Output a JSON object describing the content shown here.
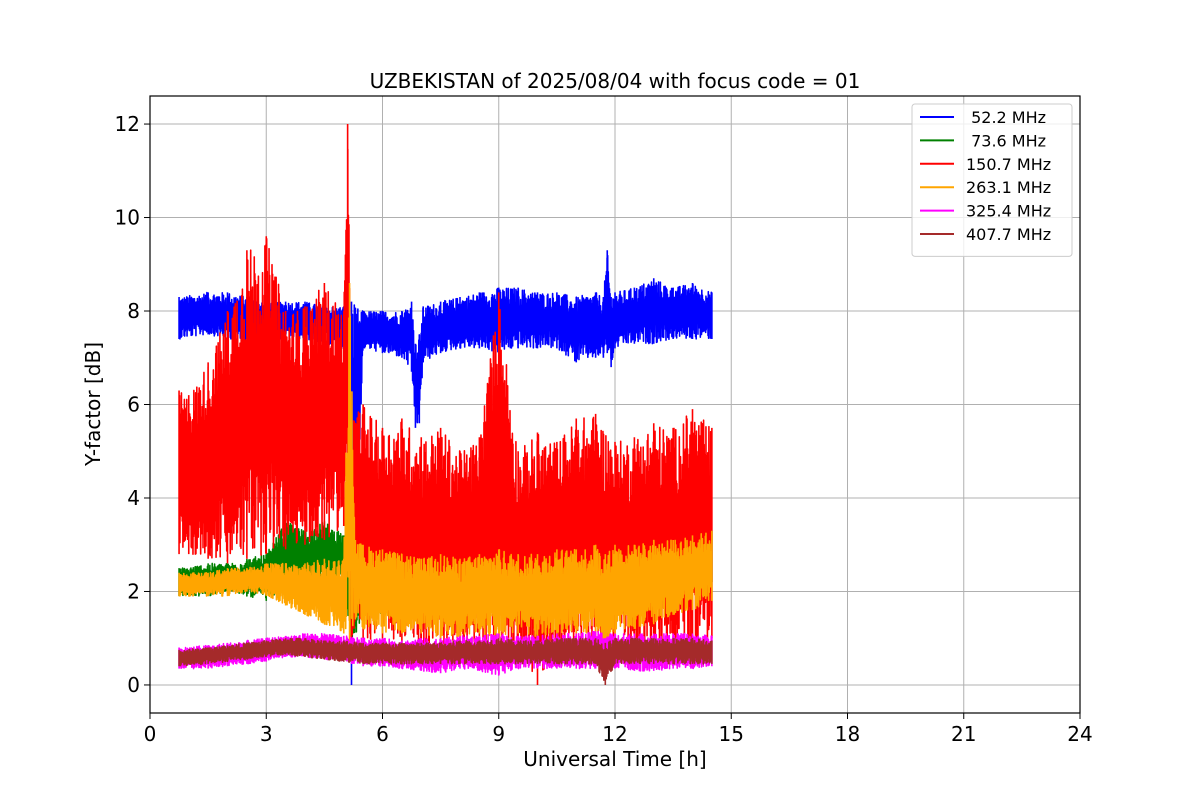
{
  "chart_data": {
    "type": "line",
    "title": "UZBEKISTAN of 2025/08/04 with focus code = 01",
    "xlabel": "Universal Time [h]",
    "ylabel": "Y-factor [dB]",
    "xlim": [
      0,
      24
    ],
    "ylim": [
      -0.6,
      12.6
    ],
    "xticks": [
      "0",
      "3",
      "6",
      "9",
      "12",
      "15",
      "18",
      "21",
      "24"
    ],
    "yticks": [
      "0",
      "2",
      "4",
      "6",
      "8",
      "10",
      "12"
    ],
    "grid": true,
    "legend_position": "top-right",
    "series": [
      {
        "name": " 52.2 MHz",
        "color": "#0000ff",
        "x": [
          0.75,
          1.5,
          2.0,
          2.5,
          3.0,
          3.5,
          4.0,
          4.5,
          5.0,
          5.1,
          5.2,
          5.5,
          6.0,
          6.5,
          6.75,
          6.85,
          6.95,
          7.05,
          7.5,
          8.0,
          8.5,
          9.0,
          9.5,
          10.0,
          10.5,
          11.0,
          11.5,
          11.7,
          11.8,
          11.9,
          12.0,
          12.5,
          13.0,
          13.5,
          14.0,
          14.5
        ],
        "lower": [
          7.4,
          7.5,
          7.4,
          7.4,
          7.4,
          7.4,
          7.4,
          7.3,
          7.2,
          7.3,
          0.0,
          7.2,
          7.1,
          7.0,
          6.7,
          5.5,
          5.6,
          6.9,
          7.1,
          7.2,
          7.2,
          7.1,
          7.2,
          7.2,
          7.2,
          6.9,
          7.0,
          7.0,
          7.1,
          6.8,
          7.2,
          7.3,
          7.3,
          7.4,
          7.4,
          7.4
        ],
        "upper": [
          8.3,
          8.4,
          8.4,
          8.3,
          8.2,
          8.2,
          8.2,
          8.1,
          8.1,
          8.2,
          8.2,
          8.0,
          8.0,
          8.0,
          8.2,
          7.3,
          7.5,
          8.1,
          8.2,
          8.3,
          8.4,
          8.5,
          8.5,
          8.4,
          8.4,
          8.3,
          8.4,
          8.3,
          9.3,
          8.3,
          8.4,
          8.5,
          8.7,
          8.5,
          8.6,
          8.4
        ]
      },
      {
        "name": " 73.6 MHz",
        "color": "#008000",
        "x": [
          0.75,
          1.5,
          2.0,
          2.5,
          3.0,
          3.5,
          4.0,
          4.5,
          5.0,
          5.2,
          5.5,
          6.0,
          6.5,
          7.0,
          7.5,
          8.0,
          8.5,
          9.0,
          9.5,
          10.0,
          10.5,
          11.0,
          11.5,
          12.0,
          12.5,
          13.0,
          13.5,
          14.0,
          14.5
        ],
        "lower": [
          1.9,
          1.9,
          2.0,
          1.9,
          1.8,
          2.1,
          2.2,
          2.2,
          2.3,
          0.6,
          1.6,
          1.5,
          1.5,
          1.6,
          1.6,
          1.7,
          1.7,
          1.7,
          1.7,
          1.7,
          1.8,
          1.8,
          1.8,
          1.9,
          1.9,
          2.0,
          2.1,
          2.1,
          2.2
        ],
        "upper": [
          2.5,
          2.6,
          2.6,
          2.7,
          2.8,
          3.5,
          3.3,
          3.5,
          3.2,
          3.0,
          3.1,
          4.3,
          4.2,
          4.0,
          3.5,
          4.2,
          3.8,
          4.6,
          3.4,
          3.2,
          3.4,
          3.5,
          3.3,
          3.2,
          3.4,
          3.2,
          3.3,
          3.4,
          3.3
        ]
      },
      {
        "name": "150.7 MHz",
        "color": "#ff0000",
        "x": [
          0.75,
          1.0,
          1.5,
          2.0,
          2.5,
          3.0,
          3.5,
          4.0,
          4.5,
          5.0,
          5.1,
          5.2,
          5.5,
          6.0,
          6.5,
          7.0,
          7.5,
          8.0,
          8.5,
          9.0,
          9.5,
          10.0,
          10.5,
          11.0,
          11.5,
          12.0,
          12.5,
          13.0,
          13.5,
          14.0,
          14.5
        ],
        "lower": [
          2.8,
          2.8,
          2.7,
          2.6,
          2.7,
          2.8,
          2.9,
          3.0,
          3.1,
          3.4,
          3.6,
          0.9,
          1.0,
          0.9,
          0.9,
          0.8,
          0.8,
          0.9,
          0.8,
          0.8,
          0.8,
          0.0,
          0.8,
          0.7,
          0.8,
          0.9,
          0.8,
          0.8,
          0.8,
          0.7,
          1.0
        ],
        "upper": [
          6.3,
          6.2,
          6.9,
          8.0,
          9.3,
          9.6,
          8.0,
          8.1,
          8.6,
          8.0,
          12.0,
          5.8,
          6.0,
          5.5,
          5.7,
          5.3,
          5.5,
          5.0,
          5.3,
          8.4,
          5.0,
          5.4,
          5.2,
          5.7,
          5.8,
          5.2,
          5.3,
          5.6,
          5.5,
          5.9,
          5.5
        ]
      },
      {
        "name": "263.1 MHz",
        "color": "#ffa500",
        "x": [
          0.75,
          1.5,
          2.0,
          2.5,
          3.0,
          3.5,
          4.0,
          4.5,
          5.0,
          5.15,
          5.3,
          5.5,
          6.0,
          6.5,
          7.0,
          7.5,
          8.0,
          8.5,
          9.0,
          9.5,
          10.0,
          10.5,
          11.0,
          11.5,
          11.75,
          12.0,
          12.5,
          13.0,
          13.5,
          14.0,
          14.5
        ],
        "lower": [
          1.9,
          1.9,
          1.9,
          2.0,
          1.9,
          1.7,
          1.5,
          1.3,
          1.1,
          0.6,
          1.4,
          1.2,
          1.1,
          1.1,
          1.1,
          1.0,
          1.0,
          1.1,
          1.0,
          1.1,
          1.0,
          1.1,
          1.1,
          1.1,
          0.5,
          1.1,
          1.2,
          1.3,
          1.5,
          1.6,
          1.8
        ],
        "upper": [
          2.4,
          2.4,
          2.5,
          2.5,
          2.6,
          2.6,
          2.6,
          2.7,
          2.7,
          8.6,
          3.1,
          3.0,
          2.9,
          2.8,
          2.7,
          2.8,
          2.7,
          2.8,
          2.9,
          2.8,
          2.8,
          2.9,
          2.9,
          3.0,
          2.8,
          3.0,
          3.0,
          3.1,
          3.1,
          3.2,
          3.3
        ]
      },
      {
        "name": "325.4 MHz",
        "color": "#ff00ff",
        "x": [
          0.75,
          1.5,
          2.0,
          2.5,
          3.0,
          3.5,
          4.0,
          4.5,
          5.0,
          5.5,
          6.0,
          6.5,
          7.0,
          7.5,
          8.0,
          8.5,
          9.0,
          9.5,
          10.0,
          10.5,
          11.0,
          11.5,
          12.0,
          12.5,
          13.0,
          13.5,
          14.0,
          14.5
        ],
        "lower": [
          0.35,
          0.35,
          0.4,
          0.45,
          0.5,
          0.6,
          0.6,
          0.55,
          0.5,
          0.4,
          0.4,
          0.35,
          0.3,
          0.25,
          0.35,
          0.3,
          0.2,
          0.35,
          0.35,
          0.35,
          0.35,
          0.35,
          0.35,
          0.3,
          0.3,
          0.35,
          0.35,
          0.4
        ],
        "upper": [
          0.8,
          0.85,
          0.9,
          0.95,
          1.0,
          1.05,
          1.1,
          1.1,
          1.05,
          1.0,
          1.0,
          0.95,
          1.0,
          1.0,
          1.05,
          1.05,
          1.1,
          1.05,
          1.05,
          1.1,
          1.1,
          1.15,
          1.1,
          1.1,
          1.1,
          1.1,
          1.1,
          1.05
        ]
      },
      {
        "name": "407.7 MHz",
        "color": "#a52a2a",
        "x": [
          0.75,
          1.5,
          2.0,
          2.5,
          3.0,
          3.5,
          4.0,
          4.5,
          5.0,
          5.5,
          6.0,
          6.5,
          7.0,
          7.5,
          8.0,
          8.5,
          9.0,
          9.5,
          10.0,
          10.5,
          11.0,
          11.5,
          11.75,
          12.0,
          12.5,
          13.0,
          13.5,
          14.0,
          14.5
        ],
        "lower": [
          0.4,
          0.45,
          0.5,
          0.55,
          0.6,
          0.65,
          0.6,
          0.55,
          0.5,
          0.45,
          0.45,
          0.45,
          0.45,
          0.45,
          0.45,
          0.45,
          0.45,
          0.45,
          0.45,
          0.45,
          0.45,
          0.45,
          0.0,
          0.45,
          0.45,
          0.45,
          0.45,
          0.45,
          0.45
        ],
        "upper": [
          0.75,
          0.8,
          0.85,
          0.9,
          0.95,
          1.0,
          1.0,
          0.95,
          0.95,
          0.9,
          0.9,
          0.9,
          0.9,
          0.9,
          0.95,
          0.95,
          1.0,
          0.95,
          0.95,
          1.0,
          1.0,
          1.0,
          0.9,
          1.0,
          1.0,
          1.0,
          1.0,
          1.0,
          0.95
        ]
      }
    ]
  }
}
